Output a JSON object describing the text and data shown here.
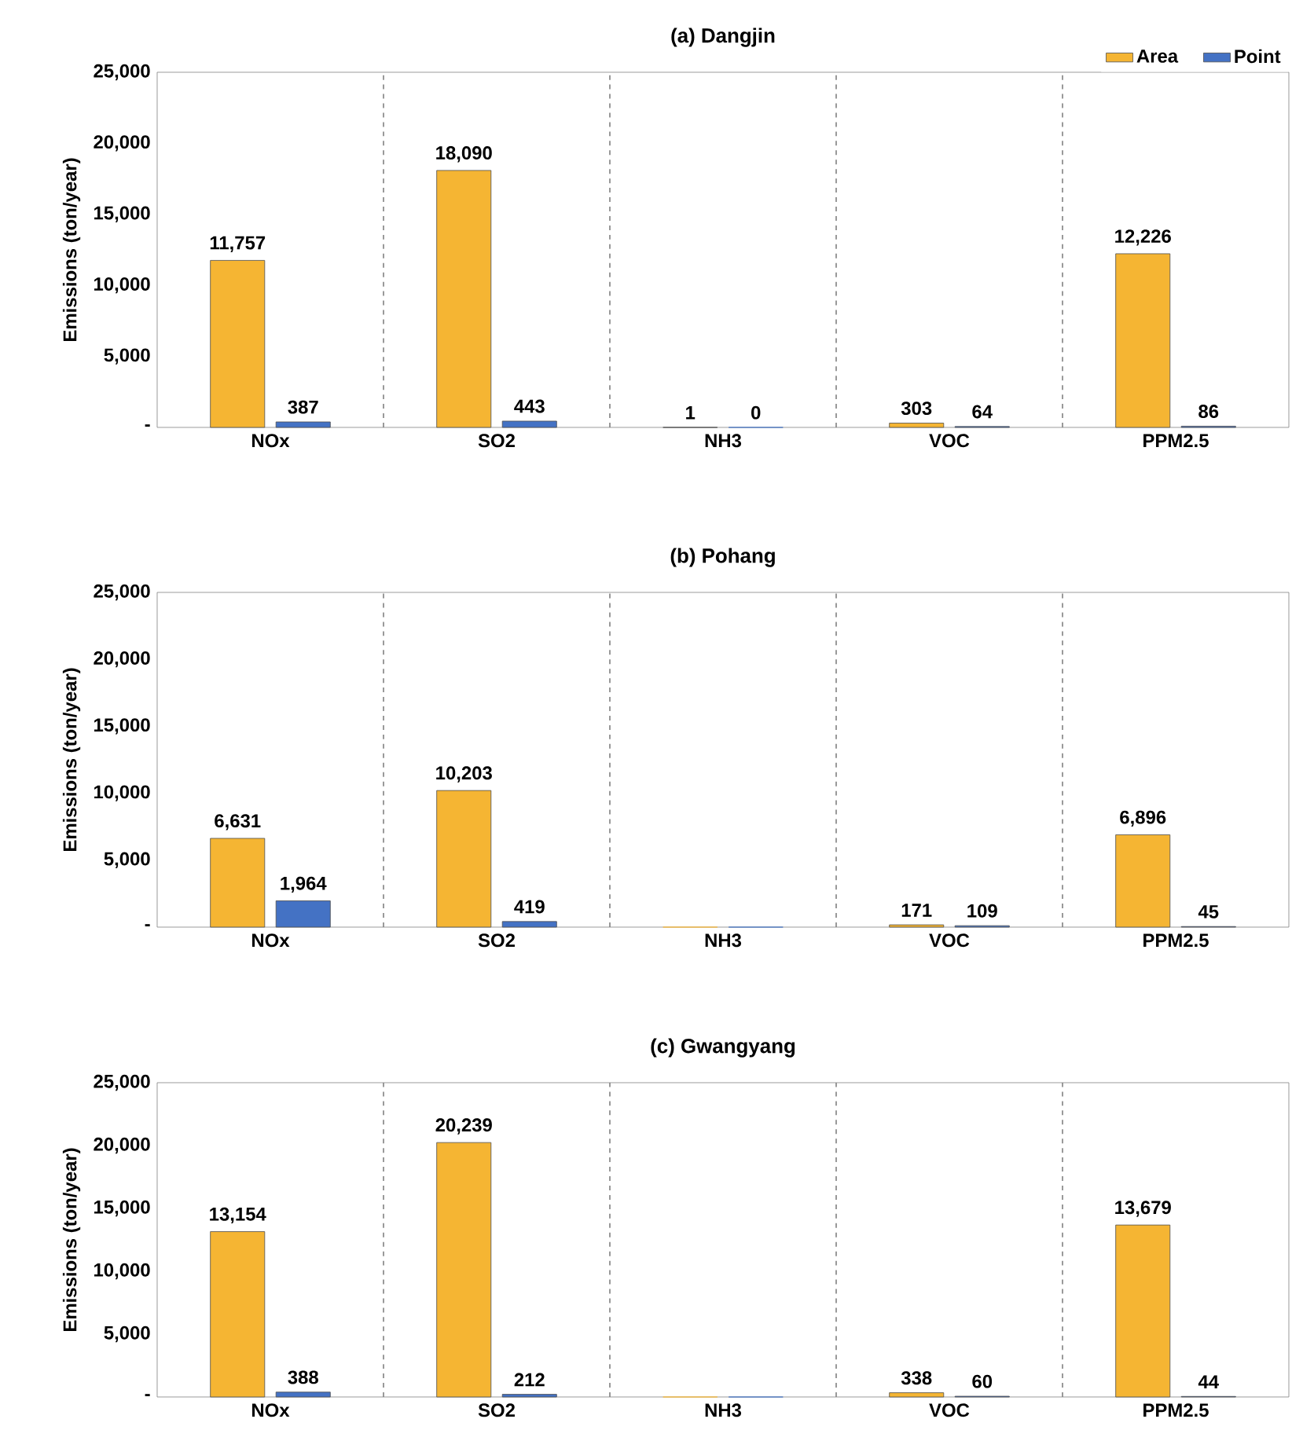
{
  "chart_data": [
    {
      "type": "bar",
      "title": "(a) Dangjin",
      "ylabel": "Emissions (ton/year)",
      "categories": [
        "NOx",
        "SO2",
        "NH3",
        "VOC",
        "PPM2.5"
      ],
      "series": [
        {
          "name": "Area",
          "color": "#f5b533",
          "values": [
            11757,
            18090,
            1,
            303,
            12226
          ],
          "value_labels": [
            "11,757",
            "18,090",
            "1",
            "303",
            "12,226"
          ]
        },
        {
          "name": "Point",
          "color": "#4472c4",
          "values": [
            387,
            443,
            0,
            64,
            86
          ],
          "value_labels": [
            "387",
            "443",
            "0",
            "64",
            "86"
          ]
        }
      ],
      "ylim": [
        0,
        25000
      ],
      "yticks": [
        {
          "value": 0,
          "label": "-"
        },
        {
          "value": 5000,
          "label": "5,000"
        },
        {
          "value": 10000,
          "label": "10,000"
        },
        {
          "value": 15000,
          "label": "15,000"
        },
        {
          "value": 20000,
          "label": "20,000"
        },
        {
          "value": 25000,
          "label": "25,000"
        }
      ],
      "legend": "top right",
      "grid": false
    },
    {
      "type": "bar",
      "title": "(b) Pohang",
      "ylabel": "Emissions (ton/year)",
      "categories": [
        "NOx",
        "SO2",
        "NH3",
        "VOC",
        "PPM2.5"
      ],
      "series": [
        {
          "color": "#f5b533",
          "values": [
            6631,
            10203,
            0,
            171,
            6896
          ],
          "value_labels": [
            "6,631",
            "10,203",
            null,
            "171",
            "6,896"
          ]
        },
        {
          "color": "#4472c4",
          "values": [
            1964,
            419,
            0,
            109,
            45
          ],
          "value_labels": [
            "1,964",
            "419",
            null,
            "109",
            "45"
          ]
        }
      ],
      "ylim": [
        0,
        25000
      ],
      "yticks": [
        {
          "value": 0,
          "label": "-"
        },
        {
          "value": 5000,
          "label": "5,000"
        },
        {
          "value": 10000,
          "label": "10,000"
        },
        {
          "value": 15000,
          "label": "15,000"
        },
        {
          "value": 20000,
          "label": "20,000"
        },
        {
          "value": 25000,
          "label": "25,000"
        }
      ],
      "grid": false
    },
    {
      "type": "bar",
      "title": "(c) Gwangyang",
      "ylabel": "Emissions (ton/year)",
      "categories": [
        "NOx",
        "SO2",
        "NH3",
        "VOC",
        "PPM2.5"
      ],
      "series": [
        {
          "color": "#f5b533",
          "values": [
            13154,
            20239,
            0,
            338,
            13679
          ],
          "value_labels": [
            "13,154",
            "20,239",
            null,
            "338",
            "13,679"
          ]
        },
        {
          "color": "#4472c4",
          "values": [
            388,
            212,
            0,
            60,
            44
          ],
          "value_labels": [
            "388",
            "212",
            null,
            "60",
            "44"
          ]
        }
      ],
      "ylim": [
        0,
        25000
      ],
      "yticks": [
        {
          "value": 0,
          "label": "-"
        },
        {
          "value": 5000,
          "label": "5,000"
        },
        {
          "value": 10000,
          "label": "10,000"
        },
        {
          "value": 15000,
          "label": "15,000"
        },
        {
          "value": 20000,
          "label": "20,000"
        },
        {
          "value": 25000,
          "label": "25,000"
        }
      ],
      "grid": false
    }
  ]
}
